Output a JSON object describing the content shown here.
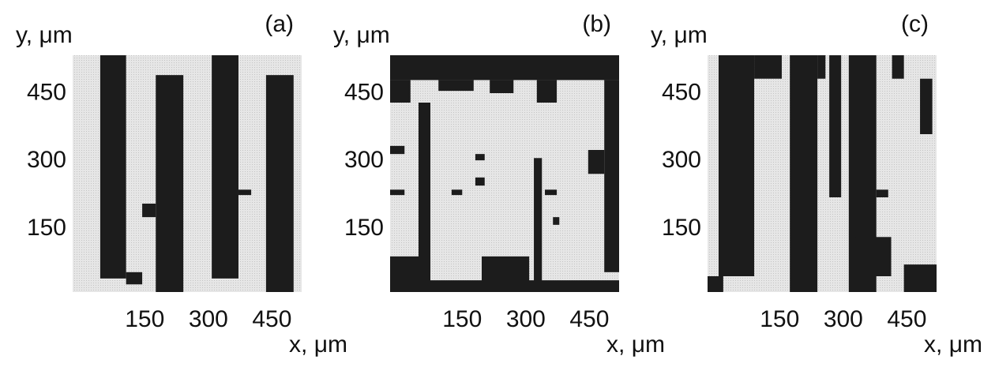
{
  "chart_data": [
    {
      "type": "map",
      "panel_label": "(a)",
      "xlabel": "x, μm",
      "ylabel": "y, μm",
      "xlim": [
        -20,
        520
      ],
      "ylim": [
        10,
        535
      ],
      "xticks": [
        150,
        300,
        450
      ],
      "yticks": [
        150,
        300,
        450
      ],
      "background": "#e6e6e6",
      "color": "#1c1c1c",
      "regions": [
        [
          45,
          106,
          40,
          535
        ],
        [
          106,
          144,
          27,
          54
        ],
        [
          176,
          241,
          10,
          491
        ],
        [
          144,
          176,
          176,
          206
        ],
        [
          308,
          371,
          40,
          535
        ],
        [
          371,
          401,
          225,
          237
        ],
        [
          436,
          501,
          10,
          491
        ]
      ]
    },
    {
      "type": "map",
      "panel_label": "(b)",
      "xlabel": "x, μm",
      "ylabel": "y, μm",
      "xlim": [
        -20,
        520
      ],
      "ylim": [
        10,
        535
      ],
      "xticks": [
        150,
        300,
        450
      ],
      "yticks": [
        150,
        300,
        450
      ],
      "background": "#e6e6e6",
      "color": "#1c1c1c",
      "regions": [
        [
          -20,
          520,
          480,
          535
        ],
        [
          -20,
          28,
          430,
          480
        ],
        [
          94,
          177,
          456,
          480
        ],
        [
          215,
          271,
          451,
          480
        ],
        [
          326,
          373,
          430,
          480
        ],
        [
          485,
          520,
          54,
          480
        ],
        [
          447,
          485,
          272,
          325
        ],
        [
          47,
          75,
          54,
          430
        ],
        [
          319,
          338,
          27,
          307
        ],
        [
          -20,
          520,
          10,
          36
        ],
        [
          -20,
          75,
          10,
          89
        ],
        [
          196,
          308,
          10,
          89
        ],
        [
          -20,
          14,
          316,
          334
        ],
        [
          -20,
          14,
          225,
          237
        ],
        [
          125,
          150,
          225,
          237
        ],
        [
          181,
          203,
          302,
          316
        ],
        [
          181,
          203,
          246,
          264
        ],
        [
          345,
          373,
          225,
          237
        ],
        [
          364,
          379,
          159,
          176
        ]
      ]
    },
    {
      "type": "map",
      "panel_label": "(c)",
      "xlabel": "x, μm",
      "ylabel": "y, μm",
      "xlim": [
        -20,
        520
      ],
      "ylim": [
        10,
        535
      ],
      "xticks": [
        150,
        300,
        450
      ],
      "yticks": [
        150,
        300,
        450
      ],
      "background": "#e6e6e6",
      "color": "#1c1c1c",
      "regions": [
        [
          6,
          90,
          45,
          535
        ],
        [
          90,
          155,
          483,
          535
        ],
        [
          174,
          239,
          10,
          535
        ],
        [
          239,
          258,
          483,
          535
        ],
        [
          267,
          295,
          220,
          535
        ],
        [
          313,
          378,
          10,
          535
        ],
        [
          378,
          406,
          220,
          237
        ],
        [
          415,
          443,
          483,
          535
        ],
        [
          443,
          520,
          10,
          71
        ],
        [
          481,
          510,
          360,
          483
        ],
        [
          -20,
          17,
          10,
          45
        ],
        [
          329,
          413,
          45,
          132
        ]
      ]
    }
  ]
}
